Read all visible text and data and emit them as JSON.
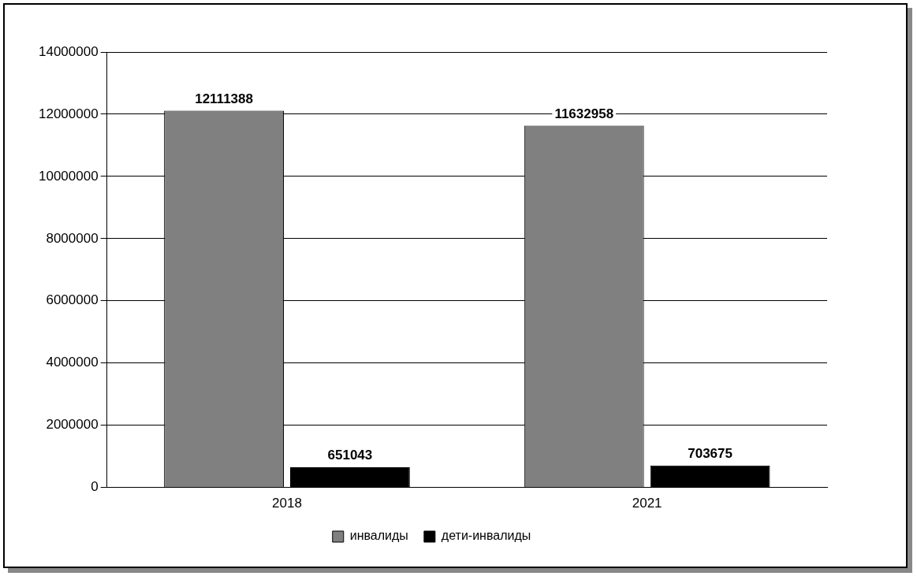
{
  "chart_data": {
    "type": "bar",
    "categories": [
      "2018",
      "2021"
    ],
    "series": [
      {
        "name": "инвалиды",
        "color": "#808080",
        "values": [
          12111388,
          11632958
        ]
      },
      {
        "name": "дети-инвалиды",
        "color": "#000000",
        "values": [
          651043,
          703675
        ]
      }
    ],
    "ylim": [
      0,
      14000000
    ],
    "yticks": [
      0,
      2000000,
      4000000,
      6000000,
      8000000,
      10000000,
      12000000,
      14000000
    ],
    "grid": "y",
    "legend": "bottom",
    "data_labels": true
  }
}
